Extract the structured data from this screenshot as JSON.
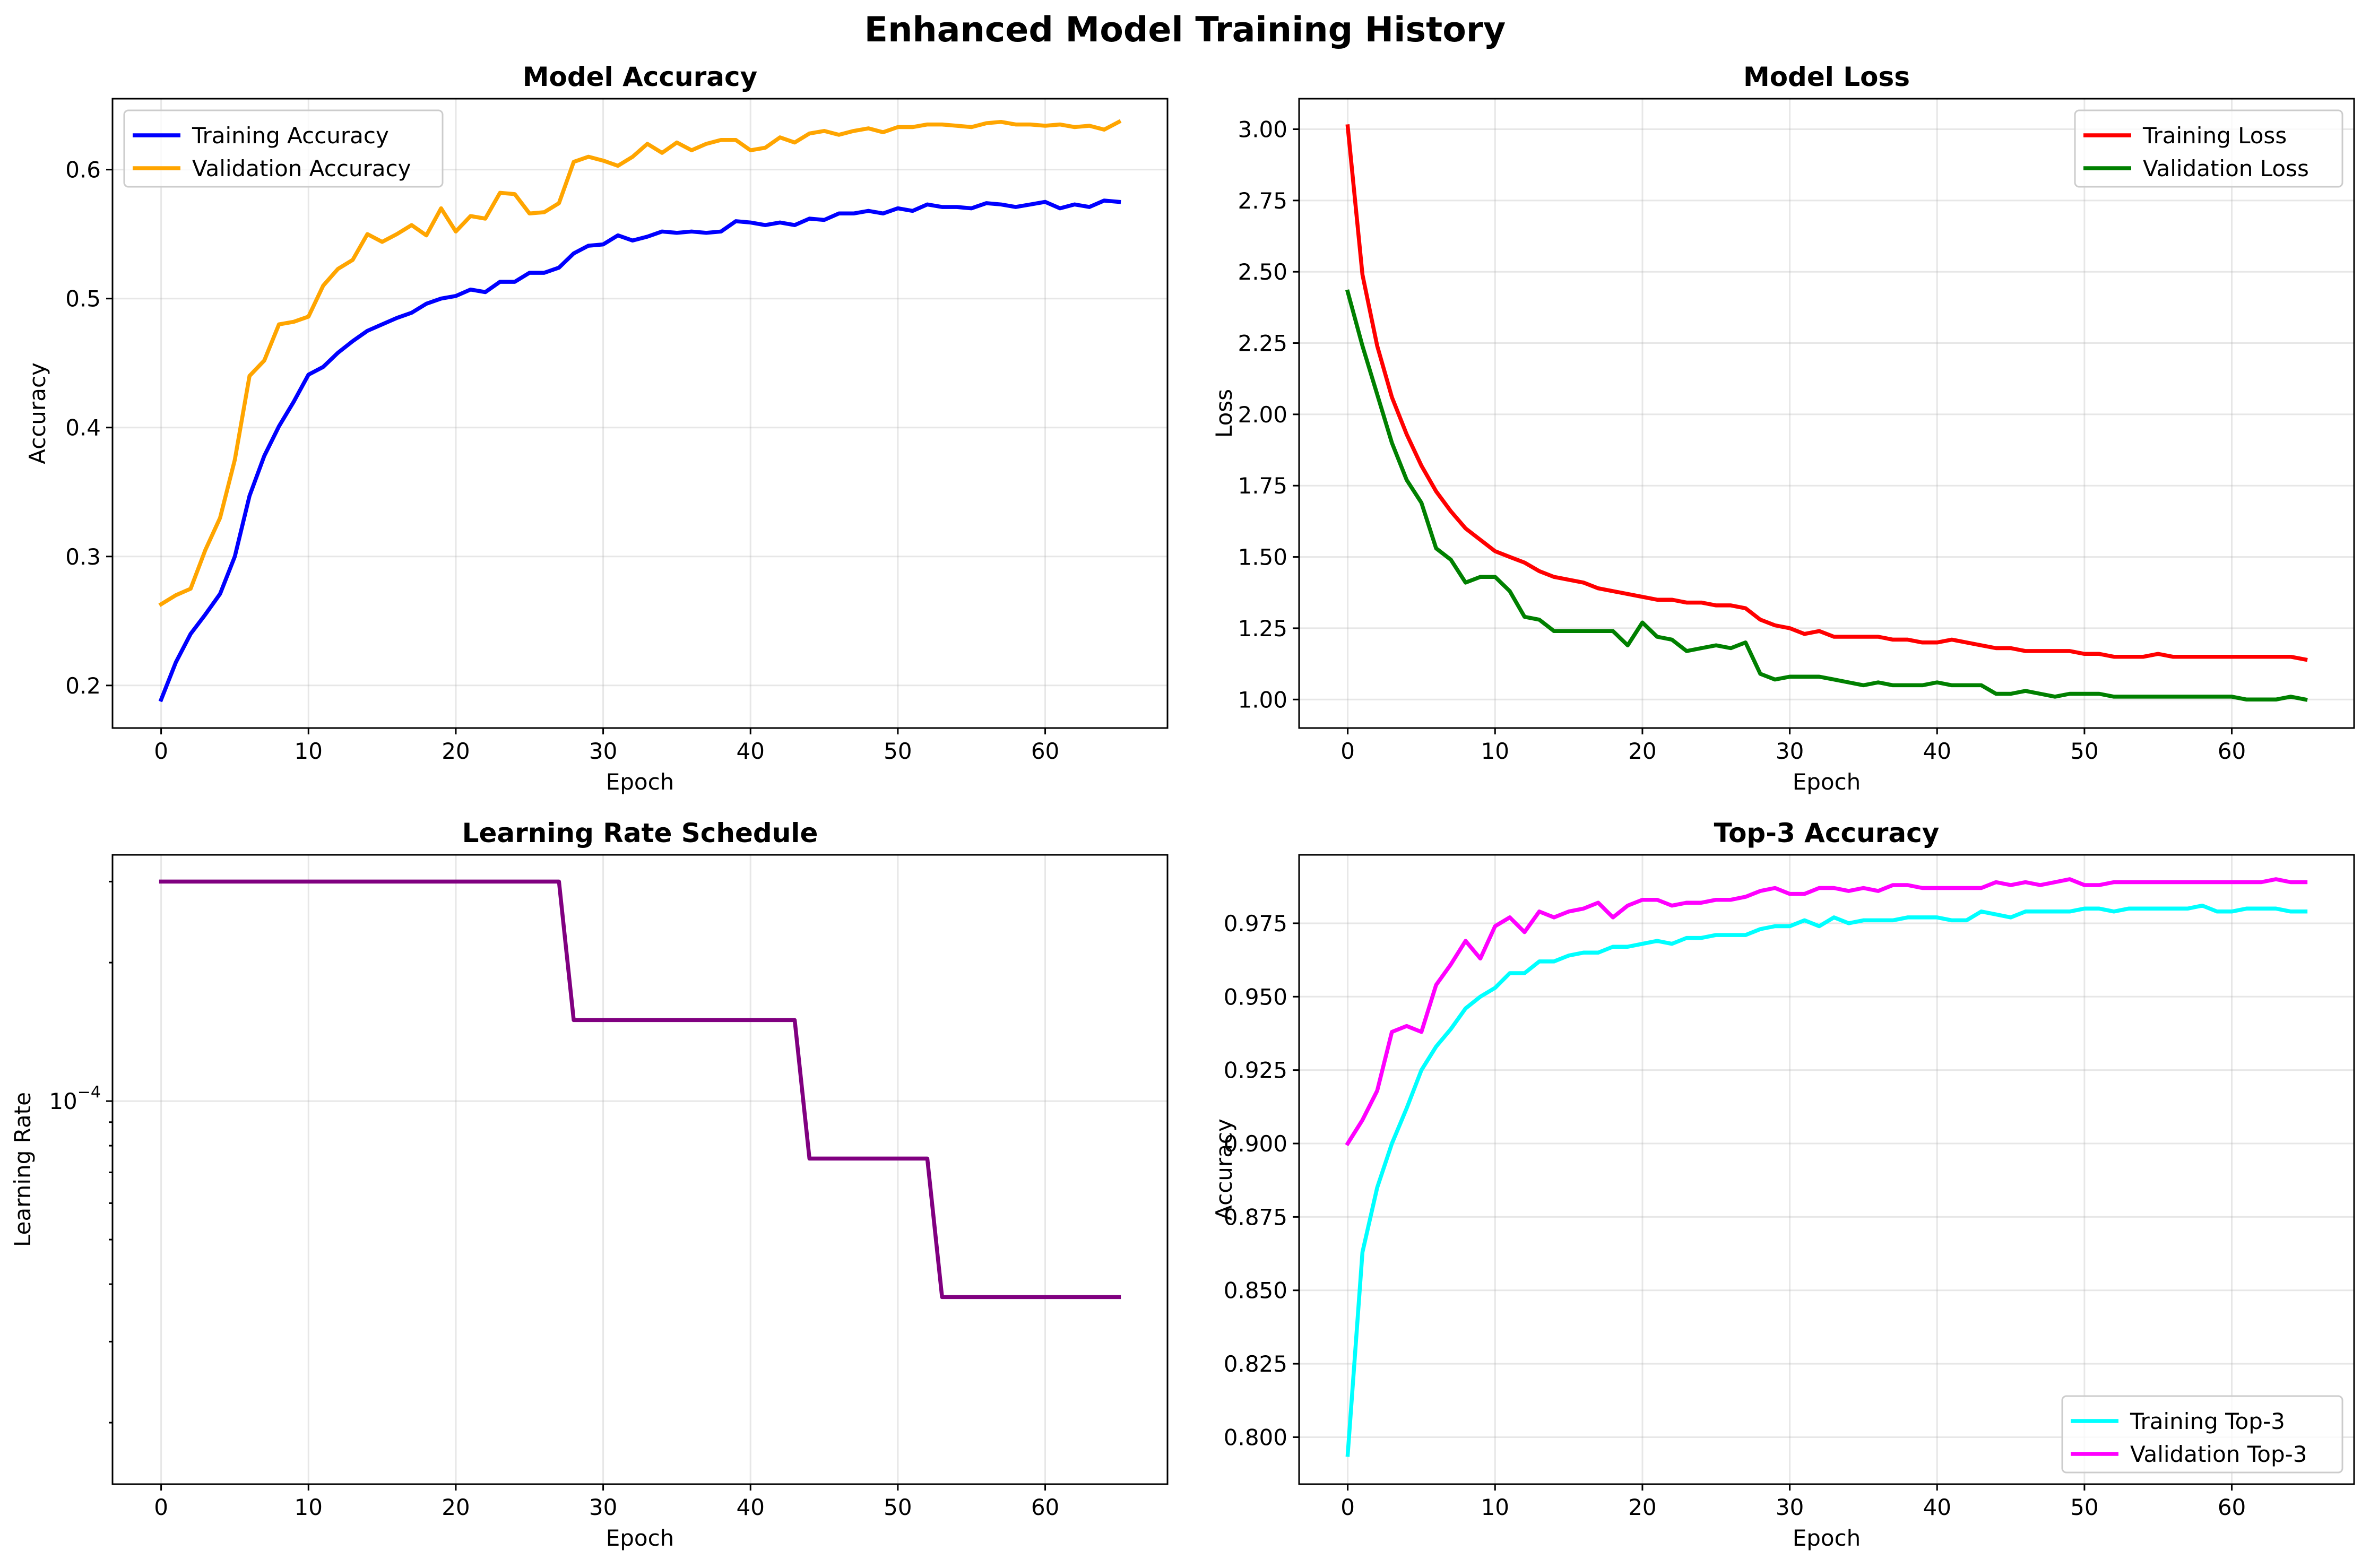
{
  "figure": {
    "suptitle": "Enhanced Model Training History"
  },
  "chart_data": [
    {
      "id": "accuracy",
      "type": "line",
      "title": "Model Accuracy",
      "xlabel": "Epoch",
      "ylabel": "Accuracy",
      "xlim": [
        -3.3,
        68.3
      ],
      "ylim": [
        0.167,
        0.655
      ],
      "xticks": [
        0,
        10,
        20,
        30,
        40,
        50,
        60
      ],
      "yticks": [
        0.2,
        0.3,
        0.4,
        0.5,
        0.6
      ],
      "ytick_labels": [
        "0.2",
        "0.3",
        "0.4",
        "0.5",
        "0.6"
      ],
      "yscale": "linear",
      "grid": true,
      "legend": "top-left",
      "series": [
        {
          "name": "Training Accuracy",
          "color": "#0000ff",
          "values": [
            0.189,
            0.218,
            0.24,
            0.255,
            0.271,
            0.3,
            0.347,
            0.378,
            0.401,
            0.42,
            0.441,
            0.447,
            0.458,
            0.467,
            0.475,
            0.48,
            0.485,
            0.489,
            0.496,
            0.5,
            0.502,
            0.507,
            0.505,
            0.513,
            0.513,
            0.52,
            0.52,
            0.524,
            0.535,
            0.541,
            0.542,
            0.549,
            0.545,
            0.548,
            0.552,
            0.551,
            0.552,
            0.551,
            0.552,
            0.56,
            0.559,
            0.557,
            0.559,
            0.557,
            0.562,
            0.561,
            0.566,
            0.566,
            0.568,
            0.566,
            0.57,
            0.568,
            0.573,
            0.571,
            0.571,
            0.57,
            0.574,
            0.573,
            0.571,
            0.573,
            0.575,
            0.57,
            0.573,
            0.571,
            0.576,
            0.575
          ]
        },
        {
          "name": "Validation Accuracy",
          "color": "#ffa500",
          "values": [
            0.263,
            0.27,
            0.275,
            0.305,
            0.33,
            0.375,
            0.44,
            0.452,
            0.48,
            0.482,
            0.486,
            0.51,
            0.523,
            0.53,
            0.55,
            0.544,
            0.55,
            0.557,
            0.549,
            0.57,
            0.552,
            0.564,
            0.562,
            0.582,
            0.581,
            0.566,
            0.567,
            0.574,
            0.606,
            0.61,
            0.607,
            0.603,
            0.61,
            0.62,
            0.613,
            0.621,
            0.615,
            0.62,
            0.623,
            0.623,
            0.615,
            0.617,
            0.625,
            0.621,
            0.628,
            0.63,
            0.627,
            0.63,
            0.632,
            0.629,
            0.633,
            0.633,
            0.635,
            0.635,
            0.634,
            0.633,
            0.636,
            0.637,
            0.635,
            0.635,
            0.634,
            0.635,
            0.633,
            0.634,
            0.631,
            0.637
          ]
        }
      ]
    },
    {
      "id": "loss",
      "type": "line",
      "title": "Model Loss",
      "xlabel": "Epoch",
      "ylabel": "Loss",
      "xlim": [
        -3.3,
        68.3
      ],
      "ylim": [
        0.9,
        3.107
      ],
      "xticks": [
        0,
        10,
        20,
        30,
        40,
        50,
        60
      ],
      "yticks": [
        1.0,
        1.25,
        1.5,
        1.75,
        2.0,
        2.25,
        2.5,
        2.75,
        3.0
      ],
      "ytick_labels": [
        "1.00",
        "1.25",
        "1.50",
        "1.75",
        "2.00",
        "2.25",
        "2.50",
        "2.75",
        "3.00"
      ],
      "yscale": "linear",
      "grid": true,
      "legend": "top-right",
      "series": [
        {
          "name": "Training Loss",
          "color": "#ff0000",
          "values": [
            3.01,
            2.49,
            2.24,
            2.06,
            1.93,
            1.82,
            1.73,
            1.66,
            1.6,
            1.56,
            1.52,
            1.5,
            1.48,
            1.45,
            1.43,
            1.42,
            1.41,
            1.39,
            1.38,
            1.37,
            1.36,
            1.35,
            1.35,
            1.34,
            1.34,
            1.33,
            1.33,
            1.32,
            1.28,
            1.26,
            1.25,
            1.23,
            1.24,
            1.22,
            1.22,
            1.22,
            1.22,
            1.21,
            1.21,
            1.2,
            1.2,
            1.21,
            1.2,
            1.19,
            1.18,
            1.18,
            1.17,
            1.17,
            1.17,
            1.17,
            1.16,
            1.16,
            1.15,
            1.15,
            1.15,
            1.16,
            1.15,
            1.15,
            1.15,
            1.15,
            1.15,
            1.15,
            1.15,
            1.15,
            1.15,
            1.14
          ]
        },
        {
          "name": "Validation Loss",
          "color": "#008000",
          "values": [
            2.43,
            2.24,
            2.07,
            1.9,
            1.77,
            1.69,
            1.53,
            1.49,
            1.41,
            1.43,
            1.43,
            1.38,
            1.29,
            1.28,
            1.24,
            1.24,
            1.24,
            1.24,
            1.24,
            1.19,
            1.27,
            1.22,
            1.21,
            1.17,
            1.18,
            1.19,
            1.18,
            1.2,
            1.09,
            1.07,
            1.08,
            1.08,
            1.08,
            1.07,
            1.06,
            1.05,
            1.06,
            1.05,
            1.05,
            1.05,
            1.06,
            1.05,
            1.05,
            1.05,
            1.02,
            1.02,
            1.03,
            1.02,
            1.01,
            1.02,
            1.02,
            1.02,
            1.01,
            1.01,
            1.01,
            1.01,
            1.01,
            1.01,
            1.01,
            1.01,
            1.01,
            1.0,
            1.0,
            1.0,
            1.01,
            1.0
          ]
        }
      ]
    },
    {
      "id": "lr",
      "type": "line",
      "title": "Learning Rate Schedule",
      "xlabel": "Epoch",
      "ylabel": "Learning Rate",
      "xlim": [
        -3.3,
        68.3
      ],
      "ylim": [
        1.47e-05,
        0.000343
      ],
      "xticks": [
        0,
        10,
        20,
        30,
        40,
        50,
        60
      ],
      "yscale": "log",
      "ymajor_tick": {
        "value": 0.0001,
        "base": "10",
        "exponent": "−4"
      },
      "yminor_ticks": [
        2e-05,
        3e-05,
        4e-05,
        5e-05,
        6e-05,
        7e-05,
        8e-05,
        9e-05,
        0.0002,
        0.0003
      ],
      "grid": true,
      "legend": "none",
      "series": [
        {
          "name": "",
          "color": "#800080",
          "values": [
            0.0003,
            0.0003,
            0.0003,
            0.0003,
            0.0003,
            0.0003,
            0.0003,
            0.0003,
            0.0003,
            0.0003,
            0.0003,
            0.0003,
            0.0003,
            0.0003,
            0.0003,
            0.0003,
            0.0003,
            0.0003,
            0.0003,
            0.0003,
            0.0003,
            0.0003,
            0.0003,
            0.0003,
            0.0003,
            0.0003,
            0.0003,
            0.0003,
            0.00015,
            0.00015,
            0.00015,
            0.00015,
            0.00015,
            0.00015,
            0.00015,
            0.00015,
            0.00015,
            0.00015,
            0.00015,
            0.00015,
            0.00015,
            0.00015,
            0.00015,
            0.00015,
            7.5e-05,
            7.5e-05,
            7.5e-05,
            7.5e-05,
            7.5e-05,
            7.5e-05,
            7.5e-05,
            7.5e-05,
            7.5e-05,
            3.75e-05,
            3.75e-05,
            3.75e-05,
            3.75e-05,
            3.75e-05,
            3.75e-05,
            3.75e-05,
            3.75e-05,
            3.75e-05,
            3.75e-05,
            3.75e-05,
            3.75e-05,
            3.75e-05
          ]
        }
      ]
    },
    {
      "id": "top3",
      "type": "line",
      "title": "Top-3 Accuracy",
      "xlabel": "Epoch",
      "ylabel": "Accuracy",
      "xlim": [
        -3.3,
        68.3
      ],
      "ylim": [
        0.784,
        0.9983
      ],
      "xticks": [
        0,
        10,
        20,
        30,
        40,
        50,
        60
      ],
      "yticks": [
        0.8,
        0.825,
        0.85,
        0.875,
        0.9,
        0.925,
        0.95,
        0.975
      ],
      "ytick_labels": [
        "0.800",
        "0.825",
        "0.850",
        "0.875",
        "0.900",
        "0.925",
        "0.950",
        "0.975"
      ],
      "yscale": "linear",
      "grid": true,
      "legend": "bottom-right",
      "series": [
        {
          "name": "Training Top-3",
          "color": "#00ffff",
          "values": [
            0.794,
            0.863,
            0.885,
            0.9,
            0.912,
            0.925,
            0.933,
            0.939,
            0.946,
            0.95,
            0.953,
            0.958,
            0.958,
            0.962,
            0.962,
            0.964,
            0.965,
            0.965,
            0.967,
            0.967,
            0.968,
            0.969,
            0.968,
            0.97,
            0.97,
            0.971,
            0.971,
            0.971,
            0.973,
            0.974,
            0.974,
            0.976,
            0.974,
            0.977,
            0.975,
            0.976,
            0.976,
            0.976,
            0.977,
            0.977,
            0.977,
            0.976,
            0.976,
            0.979,
            0.978,
            0.977,
            0.979,
            0.979,
            0.979,
            0.979,
            0.98,
            0.98,
            0.979,
            0.98,
            0.98,
            0.98,
            0.98,
            0.98,
            0.981,
            0.979,
            0.979,
            0.98,
            0.98,
            0.98,
            0.979,
            0.979
          ]
        },
        {
          "name": "Validation Top-3",
          "color": "#ff00ff",
          "values": [
            0.9,
            0.908,
            0.918,
            0.938,
            0.94,
            0.938,
            0.954,
            0.961,
            0.969,
            0.963,
            0.974,
            0.977,
            0.972,
            0.979,
            0.977,
            0.979,
            0.98,
            0.982,
            0.977,
            0.981,
            0.983,
            0.983,
            0.981,
            0.982,
            0.982,
            0.983,
            0.983,
            0.984,
            0.986,
            0.987,
            0.985,
            0.985,
            0.987,
            0.987,
            0.986,
            0.987,
            0.986,
            0.988,
            0.988,
            0.987,
            0.987,
            0.987,
            0.987,
            0.987,
            0.989,
            0.988,
            0.989,
            0.988,
            0.989,
            0.99,
            0.988,
            0.988,
            0.989,
            0.989,
            0.989,
            0.989,
            0.989,
            0.989,
            0.989,
            0.989,
            0.989,
            0.989,
            0.989,
            0.99,
            0.989,
            0.989
          ]
        }
      ]
    }
  ]
}
